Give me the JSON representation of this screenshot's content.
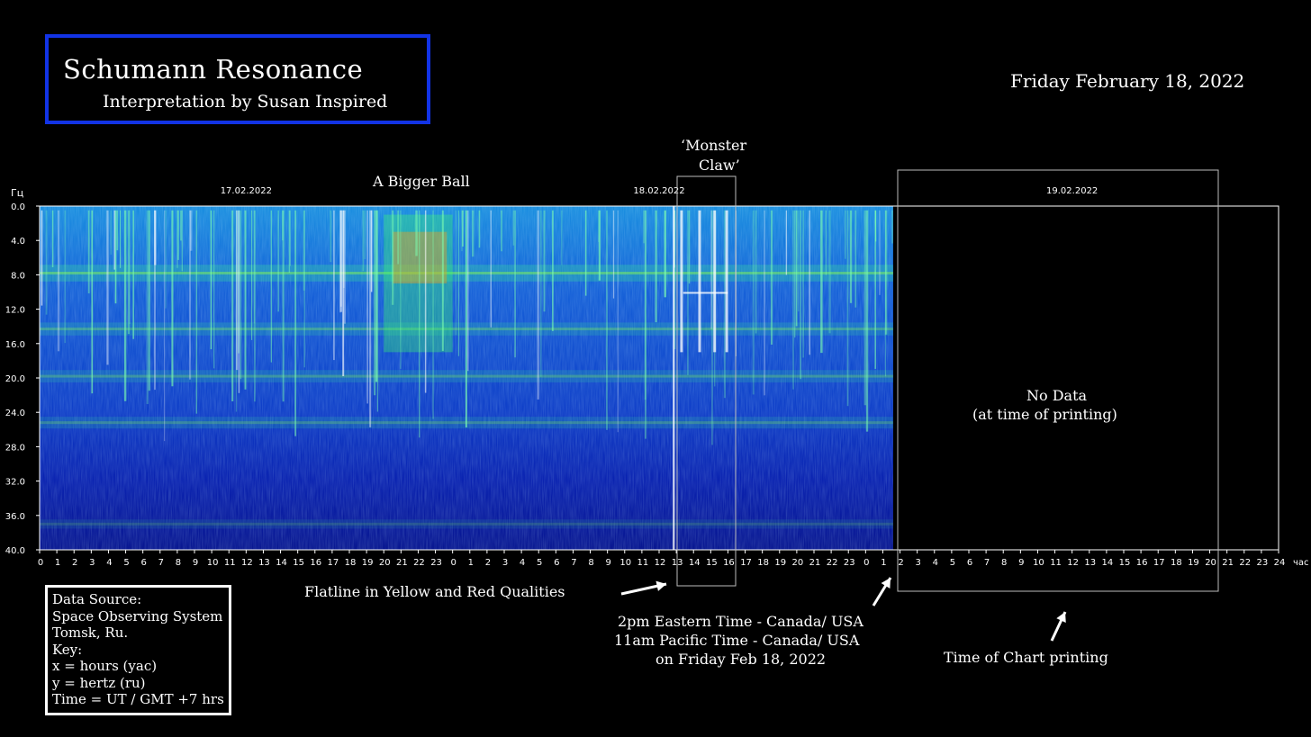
{
  "header": {
    "title": "Schumann Resonance",
    "subtitle": "Interpretation by Susan Inspired",
    "date": "Friday February 18, 2022"
  },
  "annotations": {
    "bigger_ball": "A Bigger Ball",
    "monster_claw_1": "‘Monster",
    "monster_claw_2": "Claw’",
    "no_data_1": "No Data",
    "no_data_2": "(at time of printing)",
    "flatline": "Flatline in Yellow and Red Qualities",
    "time_1": "2pm Eastern Time - Canada/ USA",
    "time_2": "11am Pacific Time - Canada/ USA",
    "time_3": "on Friday Feb 18, 2022",
    "printing": "Time of Chart printing"
  },
  "key_box": {
    "lines": [
      "Data Source:",
      "Space Observing System",
      "Tomsk, Ru.",
      "Key:",
      "x = hours (yac)",
      "y = hertz (ru)",
      "Time = UT / GMT +7 hrs"
    ]
  },
  "colors": {
    "title_border": "#1233e6",
    "spectrogram_low": "#0a1fb0",
    "spectrogram_mid": "#1ec8c8",
    "spectrogram_high": "#7dff3a",
    "spectrogram_peak": "#e8c020"
  },
  "chart_data": {
    "type": "heatmap",
    "ylabel": "Гц",
    "xlabel": "час",
    "ylim": [
      0,
      40
    ],
    "y_ticks": [
      "0.0",
      "4.0",
      "8.0",
      "12.0",
      "16.0",
      "20.0",
      "24.0",
      "28.0",
      "32.0",
      "36.0",
      "40.0"
    ],
    "x_ticks": [
      "0",
      "1",
      "2",
      "3",
      "4",
      "5",
      "6",
      "7",
      "8",
      "9",
      "10",
      "11",
      "12",
      "13",
      "14",
      "15",
      "16",
      "17",
      "18",
      "19",
      "20",
      "21",
      "22",
      "23",
      "0",
      "1",
      "2",
      "3",
      "4",
      "5",
      "6",
      "7",
      "8",
      "9",
      "10",
      "11",
      "12",
      "13",
      "14",
      "15",
      "16",
      "17",
      "18",
      "19",
      "20",
      "21",
      "22",
      "23",
      "0",
      "1",
      "2",
      "3",
      "4",
      "5",
      "6",
      "7",
      "8",
      "9",
      "10",
      "11",
      "12",
      "13",
      "14",
      "15",
      "16",
      "17",
      "18",
      "19",
      "20",
      "21",
      "22",
      "23",
      "24"
    ],
    "date_labels": [
      {
        "label": "17.02.2022",
        "hour": 12
      },
      {
        "label": "18.02.2022",
        "hour": 36
      },
      {
        "label": "19.02.2022",
        "hour": 60
      }
    ],
    "data_end_hour": 49.6,
    "bands_hz": [
      {
        "center": 7.8,
        "strength": 0.9
      },
      {
        "center": 14.3,
        "strength": 0.6
      },
      {
        "center": 19.8,
        "strength": 0.55
      },
      {
        "center": 25.2,
        "strength": 0.5
      },
      {
        "center": 37.0,
        "strength": 0.3
      }
    ],
    "highlight_regions": [
      {
        "name": "A Bigger Ball",
        "start_hour": 20,
        "end_hour": 24
      },
      {
        "name": "Monster Claw",
        "start_hour": 36.7,
        "end_hour": 40.2
      },
      {
        "name": "No Data",
        "start_hour": 49.6,
        "end_hour": 68.4
      }
    ]
  }
}
